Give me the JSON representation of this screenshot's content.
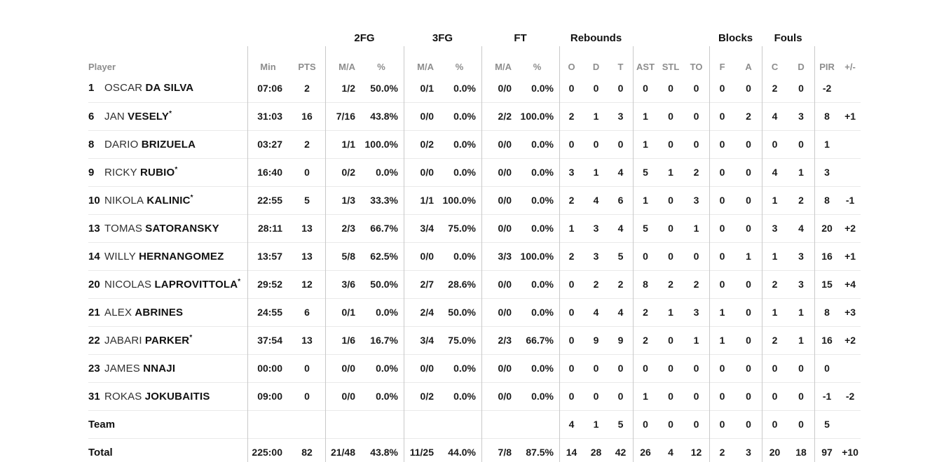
{
  "header": {
    "player_col_label": "Player",
    "groups": [
      {
        "id": "fg2",
        "label": "2FG"
      },
      {
        "id": "fg3",
        "label": "3FG"
      },
      {
        "id": "ft",
        "label": "FT"
      },
      {
        "id": "reb",
        "label": "Rebounds"
      },
      {
        "id": "blocks",
        "label": "Blocks"
      },
      {
        "id": "fouls",
        "label": "Fouls"
      }
    ],
    "cols": {
      "min": "Min",
      "pts": "PTS",
      "fg2_ma": "M/A",
      "fg2_pct": "%",
      "fg3_ma": "M/A",
      "fg3_pct": "%",
      "ft_ma": "M/A",
      "ft_pct": "%",
      "reb_o": "O",
      "reb_d": "D",
      "reb_t": "T",
      "ast": "AST",
      "stl": "STL",
      "to": "TO",
      "blk_f": "F",
      "blk_a": "A",
      "foul_c": "C",
      "foul_d": "D",
      "pir": "PIR",
      "plus_minus": "+/-"
    }
  },
  "rows": [
    {
      "type": "player",
      "number": "1",
      "first": "OSCAR",
      "last": "DA SILVA",
      "star": "",
      "min": "07:06",
      "pts": "2",
      "fg2_ma": "1/2",
      "fg2_pct": "50.0%",
      "fg3_ma": "0/1",
      "fg3_pct": "0.0%",
      "ft_ma": "0/0",
      "ft_pct": "0.0%",
      "reb_o": "0",
      "reb_d": "0",
      "reb_t": "0",
      "ast": "0",
      "stl": "0",
      "to": "0",
      "blk_f": "0",
      "blk_a": "0",
      "foul_c": "2",
      "foul_d": "0",
      "pir": "-2",
      "plus_minus": ""
    },
    {
      "type": "player",
      "number": "6",
      "first": "JAN",
      "last": "VESELY",
      "star": "*",
      "min": "31:03",
      "pts": "16",
      "fg2_ma": "7/16",
      "fg2_pct": "43.8%",
      "fg3_ma": "0/0",
      "fg3_pct": "0.0%",
      "ft_ma": "2/2",
      "ft_pct": "100.0%",
      "reb_o": "2",
      "reb_d": "1",
      "reb_t": "3",
      "ast": "1",
      "stl": "0",
      "to": "0",
      "blk_f": "0",
      "blk_a": "2",
      "foul_c": "4",
      "foul_d": "3",
      "pir": "8",
      "plus_minus": "+1"
    },
    {
      "type": "player",
      "number": "8",
      "first": "DARIO",
      "last": "BRIZUELA",
      "star": "",
      "min": "03:27",
      "pts": "2",
      "fg2_ma": "1/1",
      "fg2_pct": "100.0%",
      "fg3_ma": "0/2",
      "fg3_pct": "0.0%",
      "ft_ma": "0/0",
      "ft_pct": "0.0%",
      "reb_o": "0",
      "reb_d": "0",
      "reb_t": "0",
      "ast": "1",
      "stl": "0",
      "to": "0",
      "blk_f": "0",
      "blk_a": "0",
      "foul_c": "0",
      "foul_d": "0",
      "pir": "1",
      "plus_minus": ""
    },
    {
      "type": "player",
      "number": "9",
      "first": "RICKY",
      "last": "RUBIO",
      "star": "*",
      "min": "16:40",
      "pts": "0",
      "fg2_ma": "0/2",
      "fg2_pct": "0.0%",
      "fg3_ma": "0/0",
      "fg3_pct": "0.0%",
      "ft_ma": "0/0",
      "ft_pct": "0.0%",
      "reb_o": "3",
      "reb_d": "1",
      "reb_t": "4",
      "ast": "5",
      "stl": "1",
      "to": "2",
      "blk_f": "0",
      "blk_a": "0",
      "foul_c": "4",
      "foul_d": "1",
      "pir": "3",
      "plus_minus": ""
    },
    {
      "type": "player",
      "number": "10",
      "first": "NIKOLA",
      "last": "KALINIC",
      "star": "*",
      "min": "22:55",
      "pts": "5",
      "fg2_ma": "1/3",
      "fg2_pct": "33.3%",
      "fg3_ma": "1/1",
      "fg3_pct": "100.0%",
      "ft_ma": "0/0",
      "ft_pct": "0.0%",
      "reb_o": "2",
      "reb_d": "4",
      "reb_t": "6",
      "ast": "1",
      "stl": "0",
      "to": "3",
      "blk_f": "0",
      "blk_a": "0",
      "foul_c": "1",
      "foul_d": "2",
      "pir": "8",
      "plus_minus": "-1"
    },
    {
      "type": "player",
      "number": "13",
      "first": "TOMAS",
      "last": "SATORANSKY",
      "star": "",
      "min": "28:11",
      "pts": "13",
      "fg2_ma": "2/3",
      "fg2_pct": "66.7%",
      "fg3_ma": "3/4",
      "fg3_pct": "75.0%",
      "ft_ma": "0/0",
      "ft_pct": "0.0%",
      "reb_o": "1",
      "reb_d": "3",
      "reb_t": "4",
      "ast": "5",
      "stl": "0",
      "to": "1",
      "blk_f": "0",
      "blk_a": "0",
      "foul_c": "3",
      "foul_d": "4",
      "pir": "20",
      "plus_minus": "+2"
    },
    {
      "type": "player",
      "number": "14",
      "first": "WILLY",
      "last": "HERNANGOMEZ",
      "star": "",
      "min": "13:57",
      "pts": "13",
      "fg2_ma": "5/8",
      "fg2_pct": "62.5%",
      "fg3_ma": "0/0",
      "fg3_pct": "0.0%",
      "ft_ma": "3/3",
      "ft_pct": "100.0%",
      "reb_o": "2",
      "reb_d": "3",
      "reb_t": "5",
      "ast": "0",
      "stl": "0",
      "to": "0",
      "blk_f": "0",
      "blk_a": "1",
      "foul_c": "1",
      "foul_d": "3",
      "pir": "16",
      "plus_minus": "+1"
    },
    {
      "type": "player",
      "number": "20",
      "first": "NICOLAS",
      "last": "LAPROVITTOLA",
      "star": "*",
      "min": "29:52",
      "pts": "12",
      "fg2_ma": "3/6",
      "fg2_pct": "50.0%",
      "fg3_ma": "2/7",
      "fg3_pct": "28.6%",
      "ft_ma": "0/0",
      "ft_pct": "0.0%",
      "reb_o": "0",
      "reb_d": "2",
      "reb_t": "2",
      "ast": "8",
      "stl": "2",
      "to": "2",
      "blk_f": "0",
      "blk_a": "0",
      "foul_c": "2",
      "foul_d": "3",
      "pir": "15",
      "plus_minus": "+4"
    },
    {
      "type": "player",
      "number": "21",
      "first": "ALEX",
      "last": "ABRINES",
      "star": "",
      "min": "24:55",
      "pts": "6",
      "fg2_ma": "0/1",
      "fg2_pct": "0.0%",
      "fg3_ma": "2/4",
      "fg3_pct": "50.0%",
      "ft_ma": "0/0",
      "ft_pct": "0.0%",
      "reb_o": "0",
      "reb_d": "4",
      "reb_t": "4",
      "ast": "2",
      "stl": "1",
      "to": "3",
      "blk_f": "1",
      "blk_a": "0",
      "foul_c": "1",
      "foul_d": "1",
      "pir": "8",
      "plus_minus": "+3"
    },
    {
      "type": "player",
      "number": "22",
      "first": "JABARI",
      "last": "PARKER",
      "star": "*",
      "min": "37:54",
      "pts": "13",
      "fg2_ma": "1/6",
      "fg2_pct": "16.7%",
      "fg3_ma": "3/4",
      "fg3_pct": "75.0%",
      "ft_ma": "2/3",
      "ft_pct": "66.7%",
      "reb_o": "0",
      "reb_d": "9",
      "reb_t": "9",
      "ast": "2",
      "stl": "0",
      "to": "1",
      "blk_f": "1",
      "blk_a": "0",
      "foul_c": "2",
      "foul_d": "1",
      "pir": "16",
      "plus_minus": "+2"
    },
    {
      "type": "player",
      "number": "23",
      "first": "JAMES",
      "last": "NNAJI",
      "star": "",
      "min": "00:00",
      "pts": "0",
      "fg2_ma": "0/0",
      "fg2_pct": "0.0%",
      "fg3_ma": "0/0",
      "fg3_pct": "0.0%",
      "ft_ma": "0/0",
      "ft_pct": "0.0%",
      "reb_o": "0",
      "reb_d": "0",
      "reb_t": "0",
      "ast": "0",
      "stl": "0",
      "to": "0",
      "blk_f": "0",
      "blk_a": "0",
      "foul_c": "0",
      "foul_d": "0",
      "pir": "0",
      "plus_minus": ""
    },
    {
      "type": "player",
      "number": "31",
      "first": "ROKAS",
      "last": "JOKUBAITIS",
      "star": "",
      "min": "09:00",
      "pts": "0",
      "fg2_ma": "0/0",
      "fg2_pct": "0.0%",
      "fg3_ma": "0/2",
      "fg3_pct": "0.0%",
      "ft_ma": "0/0",
      "ft_pct": "0.0%",
      "reb_o": "0",
      "reb_d": "0",
      "reb_t": "0",
      "ast": "1",
      "stl": "0",
      "to": "0",
      "blk_f": "0",
      "blk_a": "0",
      "foul_c": "0",
      "foul_d": "0",
      "pir": "-1",
      "plus_minus": "-2"
    },
    {
      "type": "summary",
      "label": "Team",
      "min": "",
      "pts": "",
      "fg2_ma": "",
      "fg2_pct": "",
      "fg3_ma": "",
      "fg3_pct": "",
      "ft_ma": "",
      "ft_pct": "",
      "reb_o": "4",
      "reb_d": "1",
      "reb_t": "5",
      "ast": "0",
      "stl": "0",
      "to": "0",
      "blk_f": "0",
      "blk_a": "0",
      "foul_c": "0",
      "foul_d": "0",
      "pir": "5",
      "plus_minus": ""
    },
    {
      "type": "summary",
      "label": "Total",
      "min": "225:00",
      "pts": "82",
      "fg2_ma": "21/48",
      "fg2_pct": "43.8%",
      "fg3_ma": "11/25",
      "fg3_pct": "44.0%",
      "ft_ma": "7/8",
      "ft_pct": "87.5%",
      "reb_o": "14",
      "reb_d": "28",
      "reb_t": "42",
      "ast": "26",
      "stl": "4",
      "to": "12",
      "blk_f": "2",
      "blk_a": "3",
      "foul_c": "20",
      "foul_d": "18",
      "pir": "97",
      "plus_minus": "+10"
    }
  ],
  "colors": {
    "background": "#ffffff",
    "text_primary": "#111111",
    "text_secondary": "#2f2f2f",
    "header_gray": "#8d8d8d",
    "divider_vertical": "#c9c9c9",
    "divider_horizontal": "#e9e9e9"
  }
}
